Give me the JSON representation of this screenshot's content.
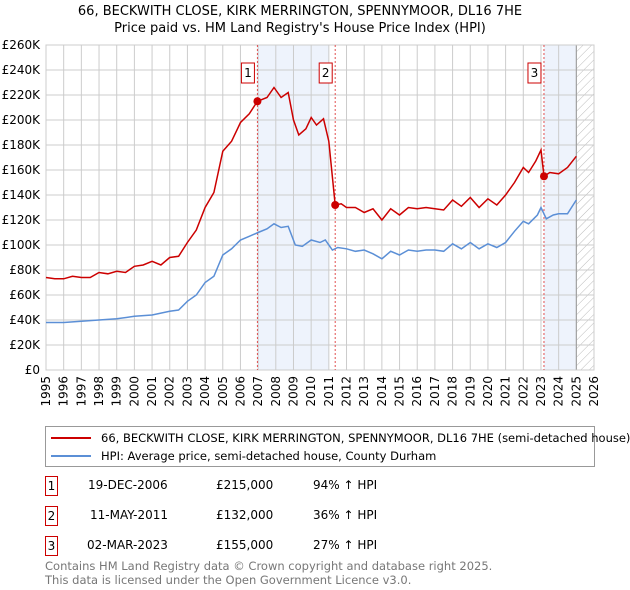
{
  "title_line1": "66, BECKWITH CLOSE, KIRK MERRINGTON, SPENNYMOOR, DL16 7HE",
  "title_line2": "Price paid vs. HM Land Registry's House Price Index (HPI)",
  "chart_data": {
    "type": "line",
    "xlim": [
      1995,
      2026
    ],
    "ylim": [
      0,
      260000
    ],
    "x_ticks": [
      1995,
      1996,
      1997,
      1998,
      1999,
      2000,
      2001,
      2002,
      2003,
      2004,
      2005,
      2006,
      2007,
      2008,
      2009,
      2010,
      2011,
      2012,
      2013,
      2014,
      2015,
      2016,
      2017,
      2018,
      2019,
      2020,
      2021,
      2022,
      2023,
      2024,
      2025,
      2026
    ],
    "y_ticks": [
      0,
      20000,
      40000,
      60000,
      80000,
      100000,
      120000,
      140000,
      160000,
      180000,
      200000,
      220000,
      240000,
      260000
    ],
    "y_tick_labels": [
      "£0",
      "£20K",
      "£40K",
      "£60K",
      "£80K",
      "£100K",
      "£120K",
      "£140K",
      "£160K",
      "£180K",
      "£200K",
      "£220K",
      "£240K",
      "£260K"
    ],
    "grid": true,
    "shaded_ranges": [
      [
        2006.96,
        2011.0
      ],
      [
        2023.17,
        2025.0
      ]
    ],
    "hatched_range": [
      2025.0,
      2026
    ],
    "series": [
      {
        "name": "66, BECKWITH CLOSE, KIRK MERRINGTON, SPENNYMOOR, DL16 7HE (semi-detached house)",
        "color": "#cc0000",
        "x": [
          1995,
          1995.5,
          1996,
          1996.5,
          1997,
          1997.5,
          1998,
          1998.5,
          1999,
          1999.5,
          2000,
          2000.5,
          2001,
          2001.5,
          2002,
          2002.5,
          2003,
          2003.5,
          2004,
          2004.5,
          2005,
          2005.5,
          2006,
          2006.5,
          2006.96,
          2007.5,
          2007.9,
          2008.3,
          2008.7,
          2009.0,
          2009.3,
          2009.7,
          2010.0,
          2010.3,
          2010.7,
          2011.0,
          2011.36,
          2011.7,
          2012,
          2012.5,
          2013,
          2013.5,
          2014,
          2014.5,
          2015,
          2015.5,
          2016,
          2016.5,
          2017,
          2017.5,
          2018,
          2018.5,
          2019,
          2019.5,
          2020,
          2020.5,
          2021,
          2021.5,
          2022,
          2022.3,
          2022.7,
          2023.0,
          2023.17,
          2023.5,
          2024,
          2024.5,
          2025
        ],
        "y": [
          74000,
          73000,
          73000,
          75000,
          74000,
          74000,
          78000,
          77000,
          79000,
          78000,
          83000,
          84000,
          87000,
          84000,
          90000,
          91000,
          102000,
          112000,
          130000,
          142000,
          175000,
          183000,
          198000,
          205000,
          215000,
          218000,
          226000,
          218000,
          222000,
          200000,
          188000,
          193000,
          202000,
          196000,
          201000,
          183000,
          132000,
          133000,
          130000,
          130000,
          126000,
          129000,
          120000,
          129000,
          124000,
          130000,
          129000,
          130000,
          129000,
          128000,
          136000,
          131000,
          138000,
          130000,
          137000,
          132000,
          140000,
          150000,
          162000,
          158000,
          167000,
          176000,
          155000,
          158000,
          157000,
          162000,
          171000
        ]
      },
      {
        "name": "HPI: Average price, semi-detached house, County Durham",
        "color": "#5b8fd6",
        "x": [
          1995,
          1996,
          1997,
          1998,
          1999,
          2000,
          2001,
          2002,
          2002.5,
          2003,
          2003.5,
          2004,
          2004.5,
          2005,
          2005.5,
          2006,
          2006.5,
          2007,
          2007.5,
          2007.9,
          2008.3,
          2008.7,
          2009.1,
          2009.5,
          2010,
          2010.5,
          2010.8,
          2011.2,
          2011.5,
          2012,
          2012.5,
          2013,
          2013.5,
          2014,
          2014.5,
          2015,
          2015.5,
          2016,
          2016.5,
          2017,
          2017.5,
          2018,
          2018.5,
          2019,
          2019.5,
          2020,
          2020.5,
          2021,
          2021.5,
          2022,
          2022.3,
          2022.8,
          2023.0,
          2023.3,
          2023.7,
          2024,
          2024.5,
          2025
        ],
        "y": [
          38000,
          38000,
          39000,
          40000,
          41000,
          43000,
          44000,
          47000,
          48000,
          55000,
          60000,
          70000,
          75000,
          92000,
          97000,
          104000,
          107000,
          110000,
          113000,
          117000,
          114000,
          115000,
          100000,
          99000,
          104000,
          102000,
          104000,
          96000,
          98000,
          97000,
          95000,
          96000,
          93000,
          89000,
          95000,
          92000,
          96000,
          95000,
          96000,
          96000,
          95000,
          101000,
          97000,
          102000,
          97000,
          101000,
          98000,
          102000,
          111000,
          119000,
          117000,
          124000,
          130000,
          121000,
          124000,
          125000,
          125000,
          136000
        ]
      }
    ],
    "sales": [
      {
        "label": "1",
        "x": 2006.96,
        "y": 215000,
        "date": "19-DEC-2006",
        "price": "£215,000",
        "hpi": "94% ↑ HPI"
      },
      {
        "label": "2",
        "x": 2011.36,
        "y": 132000,
        "date": "11-MAY-2011",
        "price": "£132,000",
        "hpi": "36% ↑ HPI"
      },
      {
        "label": "3",
        "x": 2023.17,
        "y": 155000,
        "date": "02-MAR-2023",
        "price": "£155,000",
        "hpi": "27% ↑ HPI"
      }
    ]
  },
  "legend": {
    "red_label": "66, BECKWITH CLOSE, KIRK MERRINGTON, SPENNYMOOR, DL16 7HE (semi-detached house)",
    "blue_label": "HPI: Average price, semi-detached house, County Durham"
  },
  "footer": {
    "line1": "Contains HM Land Registry data © Crown copyright and database right 2025.",
    "line2": "This data is licensed under the Open Government Licence v3.0."
  }
}
